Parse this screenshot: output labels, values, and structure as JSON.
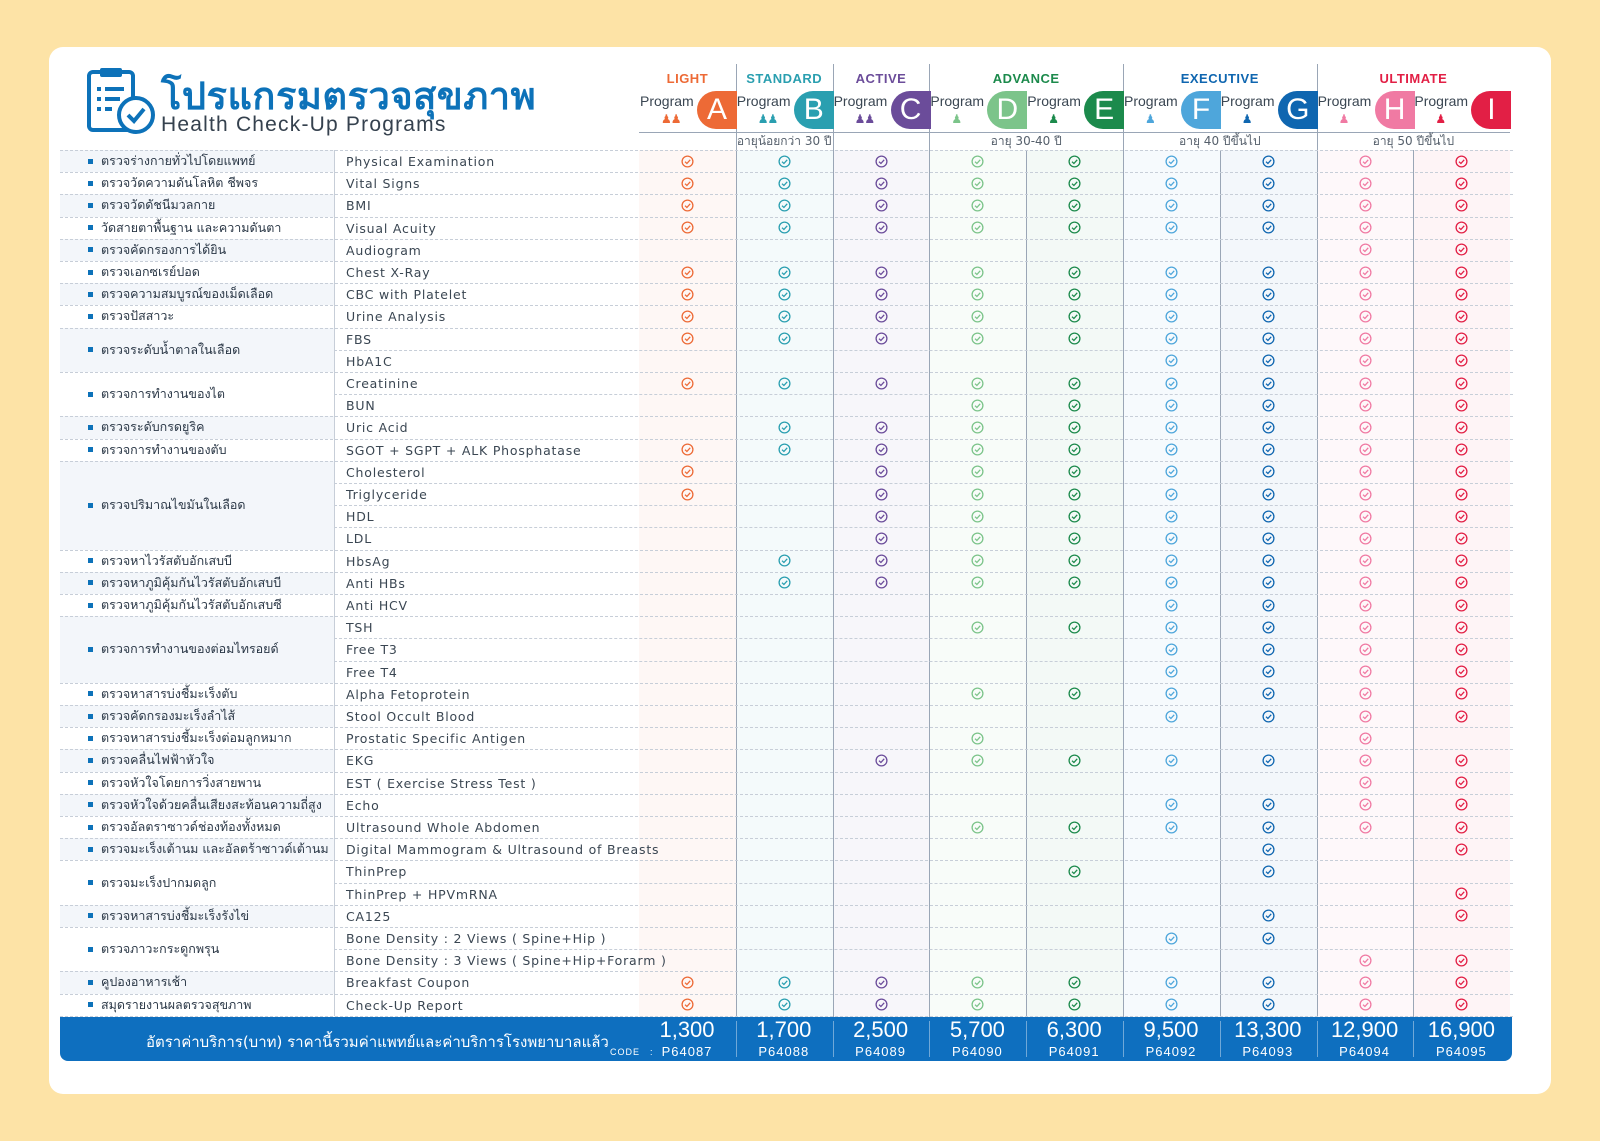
{
  "header": {
    "title_th": "โปรแกรมตรวจสุขภาพ",
    "title_en": "Health Check-Up Programs"
  },
  "colors": {
    "brand": "#0d72b9",
    "A": "#ed6a36",
    "B": "#2a9fb0",
    "C": "#6b4c9a",
    "D": "#7cc48a",
    "E": "#1c8a4c",
    "F": "#4ea6db",
    "G": "#0f66b0",
    "H": "#f07aa3",
    "I": "#e21f45"
  },
  "categories": [
    {
      "label": "LIGHT",
      "color": "#ed6a36",
      "cols": [
        0
      ]
    },
    {
      "label": "STANDARD",
      "color": "#2a9fb0",
      "cols": [
        1
      ]
    },
    {
      "label": "ACTIVE",
      "color": "#6b4c9a",
      "cols": [
        2
      ]
    },
    {
      "label": "ADVANCE",
      "color": "#1c8a4c",
      "cols": [
        3,
        4
      ]
    },
    {
      "label": "EXECUTIVE",
      "color": "#0f66b0",
      "cols": [
        5,
        6
      ]
    },
    {
      "label": "ULTIMATE",
      "color": "#e21f45",
      "cols": [
        7,
        8
      ]
    }
  ],
  "program_word": "Program",
  "programs": [
    {
      "letter": "A",
      "color": "#ed6a36",
      "gender": "both",
      "price": "1,300",
      "code": "P64087"
    },
    {
      "letter": "B",
      "color": "#2a9fb0",
      "gender": "both",
      "price": "1,700",
      "code": "P64088"
    },
    {
      "letter": "C",
      "color": "#6b4c9a",
      "gender": "both",
      "price": "2,500",
      "code": "P64089"
    },
    {
      "letter": "D",
      "color": "#7cc48a",
      "gender": "male",
      "price": "5,700",
      "code": "P64090"
    },
    {
      "letter": "E",
      "color": "#1c8a4c",
      "gender": "female",
      "price": "6,300",
      "code": "P64091"
    },
    {
      "letter": "F",
      "color": "#4ea6db",
      "gender": "male",
      "price": "9,500",
      "code": "P64092"
    },
    {
      "letter": "G",
      "color": "#0f66b0",
      "gender": "female",
      "price": "13,300",
      "code": "P64093"
    },
    {
      "letter": "H",
      "color": "#f07aa3",
      "gender": "male",
      "price": "12,900",
      "code": "P64094"
    },
    {
      "letter": "I",
      "color": "#e21f45",
      "gender": "female",
      "price": "16,900",
      "code": "P64095"
    }
  ],
  "age_groups": [
    {
      "label": "อายุน้อยกว่า 30 ปี",
      "cols": [
        0,
        2
      ]
    },
    {
      "label": "อายุ 30-40 ปี",
      "cols": [
        3,
        4
      ]
    },
    {
      "label": "อายุ 40 ปีขึ้นไป",
      "cols": [
        5,
        6
      ]
    },
    {
      "label": "อายุ 50 ปีขึ้นไป",
      "cols": [
        7,
        8
      ]
    }
  ],
  "groups": [
    {
      "th": "ตรวจร่างกายทั่วไปโดยแพทย์",
      "items": [
        {
          "en": "Physical Examination",
          "checks": "111111111"
        }
      ]
    },
    {
      "th": "ตรวจวัดความดันโลหิต ชีพจร",
      "items": [
        {
          "en": "Vital Signs",
          "checks": "111111111"
        }
      ]
    },
    {
      "th": "ตรวจวัดดัชนีมวลกาย",
      "items": [
        {
          "en": "BMI",
          "checks": "111111111"
        }
      ]
    },
    {
      "th": "วัดสายตาพื้นฐาน และความดันตา",
      "items": [
        {
          "en": "Visual Acuity",
          "checks": "111111111"
        }
      ]
    },
    {
      "th": "ตรวจคัดกรองการได้ยิน",
      "items": [
        {
          "en": "Audiogram",
          "checks": "000000011"
        }
      ]
    },
    {
      "th": "ตรวจเอกซเรย์ปอด",
      "items": [
        {
          "en": "Chest X-Ray",
          "checks": "111111111"
        }
      ]
    },
    {
      "th": "ตรวจความสมบูรณ์ของเม็ดเลือด",
      "items": [
        {
          "en": "CBC with Platelet",
          "checks": "111111111"
        }
      ]
    },
    {
      "th": "ตรวจปัสสาวะ",
      "items": [
        {
          "en": "Urine Analysis",
          "checks": "111111111"
        }
      ]
    },
    {
      "th": "ตรวจระดับน้ำตาลในเลือด",
      "items": [
        {
          "en": "FBS",
          "checks": "111111111"
        },
        {
          "en": "HbA1C",
          "checks": "000001111"
        }
      ]
    },
    {
      "th": "ตรวจการทำงานของไต",
      "items": [
        {
          "en": "Creatinine",
          "checks": "111111111"
        },
        {
          "en": "BUN",
          "checks": "000111111"
        }
      ]
    },
    {
      "th": "ตรวจระดับกรดยูริค",
      "items": [
        {
          "en": "Uric Acid",
          "checks": "011111111"
        }
      ]
    },
    {
      "th": "ตรวจการทำงานของตับ",
      "items": [
        {
          "en": "SGOT + SGPT + ALK Phosphatase",
          "checks": "111111111"
        }
      ]
    },
    {
      "th": "ตรวจปริมาณไขมันในเลือด",
      "items": [
        {
          "en": "Cholesterol",
          "checks": "101111111"
        },
        {
          "en": "Triglyceride",
          "checks": "101111111"
        },
        {
          "en": "HDL",
          "checks": "001111111"
        },
        {
          "en": "LDL",
          "checks": "001111111"
        }
      ]
    },
    {
      "th": "ตรวจหาไวรัสตับอักเสบบี",
      "items": [
        {
          "en": "HbsAg",
          "checks": "011111111"
        }
      ]
    },
    {
      "th": "ตรวจหาภูมิคุ้มกันไวรัสตับอักเสบบี",
      "items": [
        {
          "en": "Anti HBs",
          "checks": "011111111"
        }
      ]
    },
    {
      "th": "ตรวจหาภูมิคุ้มกันไวรัสตับอักเสบซี",
      "items": [
        {
          "en": "Anti HCV",
          "checks": "000001111"
        }
      ]
    },
    {
      "th": "ตรวจการทำงานของต่อมไทรอยด์",
      "items": [
        {
          "en": "TSH",
          "checks": "000111111"
        },
        {
          "en": "Free T3",
          "checks": "000001111"
        },
        {
          "en": "Free T4",
          "checks": "000001111"
        }
      ]
    },
    {
      "th": "ตรวจหาสารบ่งชี้มะเร็งตับ",
      "items": [
        {
          "en": "Alpha Fetoprotein",
          "checks": "000111111"
        }
      ]
    },
    {
      "th": "ตรวจคัดกรองมะเร็งลำไส้",
      "items": [
        {
          "en": "Stool Occult Blood",
          "checks": "000001111"
        }
      ]
    },
    {
      "th": "ตรวจหาสารบ่งชี้มะเร็งต่อมลูกหมาก",
      "items": [
        {
          "en": "Prostatic Specific Antigen",
          "checks": "000100010"
        }
      ]
    },
    {
      "th": "ตรวจคลื่นไฟฟ้าหัวใจ",
      "items": [
        {
          "en": "EKG",
          "checks": "001111111"
        }
      ]
    },
    {
      "th": "ตรวจหัวใจโดยการวิ่งสายพาน",
      "items": [
        {
          "en": "EST ( Exercise Stress Test )",
          "checks": "000000011"
        }
      ]
    },
    {
      "th": "ตรวจหัวใจด้วยคลื่นเสียงสะท้อนความถี่สูง",
      "items": [
        {
          "en": "Echo",
          "checks": "000001111"
        }
      ]
    },
    {
      "th": "ตรวจอัลตราซาวด์ช่องท้องทั้งหมด",
      "items": [
        {
          "en": "Ultrasound Whole Abdomen",
          "checks": "000111111"
        }
      ]
    },
    {
      "th": "ตรวจมะเร็งเต้านม และอัลตร้าซาวด์เต้านม",
      "items": [
        {
          "en": "Digital Mammogram & Ultrasound of Breasts",
          "checks": "000000101"
        }
      ]
    },
    {
      "th": "ตรวจมะเร็งปากมดลูก",
      "items": [
        {
          "en": "ThinPrep",
          "checks": "000010100"
        },
        {
          "en": "ThinPrep + HPVmRNA",
          "checks": "000000001"
        }
      ]
    },
    {
      "th": "ตรวจหาสารบ่งชี้มะเร็งรังไข่",
      "items": [
        {
          "en": "CA125",
          "checks": "000000101"
        }
      ]
    },
    {
      "th": "ตรวจภาวะกระดูกพรุน",
      "items": [
        {
          "en": "Bone Density : 2 Views ( Spine+Hip )",
          "checks": "000001100"
        },
        {
          "en": "Bone Density : 3 Views ( Spine+Hip+Forarm )",
          "checks": "000000011"
        }
      ]
    },
    {
      "th": "คูปองอาหารเช้า",
      "items": [
        {
          "en": "Breakfast Coupon",
          "checks": "111111111"
        }
      ]
    },
    {
      "th": "สมุดรายงานผลตรวจสุขภาพ",
      "items": [
        {
          "en": "Check-Up Report",
          "checks": "111111111"
        }
      ]
    }
  ],
  "footer": {
    "note": "อัตราค่าบริการ(บาท) ราคานี้รวมค่าแพทย์และค่าบริการโรงพยาบาลแล้ว",
    "code_label": "CODE",
    "code_colon": ":"
  }
}
